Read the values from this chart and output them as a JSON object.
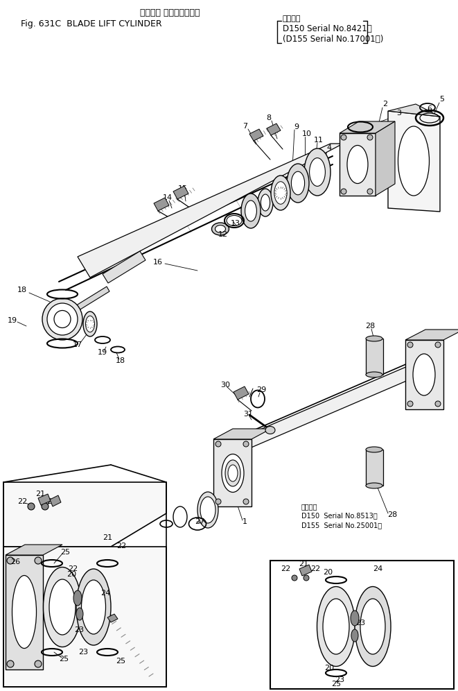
{
  "bg_color": "#ffffff",
  "line_color": "#000000",
  "title1": "ブレード リフトシリンダ",
  "title2": "Fig. 631C  BLADE LIFT CYLINDER",
  "title_right1": "適用号機",
  "title_right2": "D150 Serial No.8421～",
  "title_right3": "(D155 Serial No.17001～)",
  "serial_label": "適用号機",
  "serial1": "D150  Serial No.8513～",
  "serial2": "D155  Serial No.25001～"
}
